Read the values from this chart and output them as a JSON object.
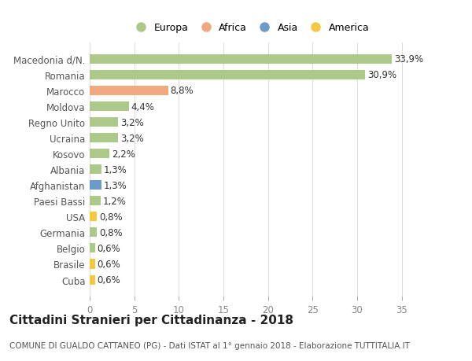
{
  "categories": [
    "Macedonia d/N.",
    "Romania",
    "Marocco",
    "Moldova",
    "Regno Unito",
    "Ucraina",
    "Kosovo",
    "Albania",
    "Afghanistan",
    "Paesi Bassi",
    "USA",
    "Germania",
    "Belgio",
    "Brasile",
    "Cuba"
  ],
  "values": [
    33.9,
    30.9,
    8.8,
    4.4,
    3.2,
    3.2,
    2.2,
    1.3,
    1.3,
    1.2,
    0.8,
    0.8,
    0.6,
    0.6,
    0.6
  ],
  "labels": [
    "33,9%",
    "30,9%",
    "8,8%",
    "4,4%",
    "3,2%",
    "3,2%",
    "2,2%",
    "1,3%",
    "1,3%",
    "1,2%",
    "0,8%",
    "0,8%",
    "0,6%",
    "0,6%",
    "0,6%"
  ],
  "bar_colors": [
    "#adc98a",
    "#adc98a",
    "#f0a97e",
    "#adc98a",
    "#adc98a",
    "#adc98a",
    "#adc98a",
    "#adc98a",
    "#6b9bc9",
    "#adc98a",
    "#f5c842",
    "#adc98a",
    "#adc98a",
    "#f5c842",
    "#f5c842"
  ],
  "legend_labels": [
    "Europa",
    "Africa",
    "Asia",
    "America"
  ],
  "legend_colors": [
    "#adc98a",
    "#f0a97e",
    "#6b9bc9",
    "#f5c842"
  ],
  "title": "Cittadini Stranieri per Cittadinanza - 2018",
  "subtitle": "COMUNE DI GUALDO CATTANEO (PG) - Dati ISTAT al 1° gennaio 2018 - Elaborazione TUTTITALIA.IT",
  "xlim": [
    0,
    36
  ],
  "xticks": [
    0,
    5,
    10,
    15,
    20,
    25,
    30,
    35
  ],
  "background_color": "#ffffff",
  "grid_color": "#dddddd",
  "bar_height": 0.6,
  "label_fontsize": 8.5,
  "tick_fontsize": 8.5,
  "title_fontsize": 11,
  "subtitle_fontsize": 7.5
}
